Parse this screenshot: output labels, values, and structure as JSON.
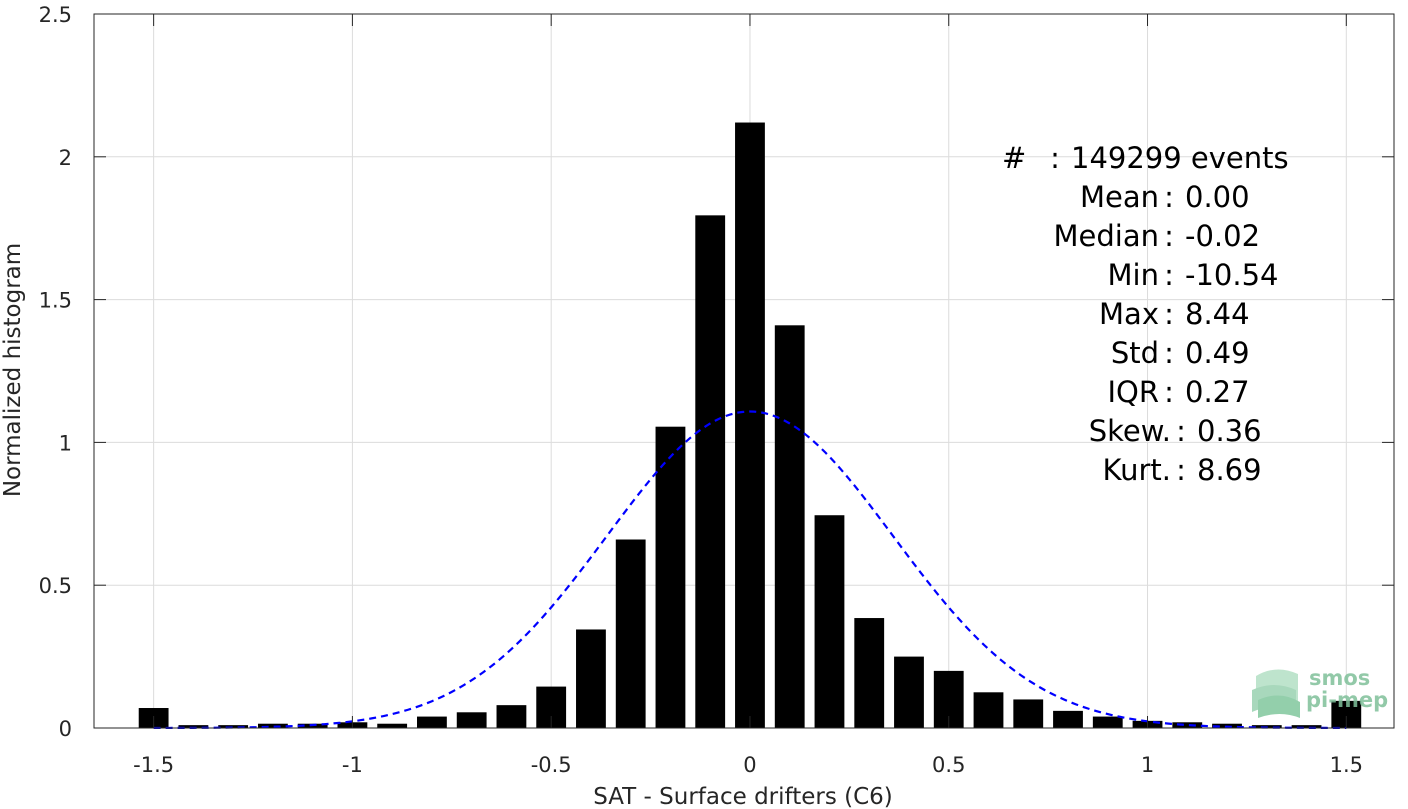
{
  "chart_data": {
    "type": "bar",
    "xlabel": "SAT - Surface drifters (C6)",
    "ylabel": "Normalized histogram",
    "xlim": [
      -1.65,
      1.62
    ],
    "ylim": [
      0,
      2.5
    ],
    "xticks": [
      -1.5,
      -1,
      -0.5,
      0,
      0.5,
      1,
      1.5
    ],
    "xtick_labels": [
      "-1.5",
      "-1",
      "-0.5",
      "0",
      "0.5",
      "1",
      "1.5"
    ],
    "yticks": [
      0,
      0.5,
      1,
      1.5,
      2,
      2.5
    ],
    "ytick_labels": [
      "0",
      "0.5",
      "1",
      "1.5",
      "2",
      "2.5"
    ],
    "grid": true,
    "bar_color": "#000000",
    "bar_width": 0.075,
    "x": [
      -1.5,
      -1.4,
      -1.3,
      -1.2,
      -1.1,
      -1.0,
      -0.9,
      -0.8,
      -0.7,
      -0.6,
      -0.5,
      -0.4,
      -0.3,
      -0.2,
      -0.1,
      0.0,
      0.1,
      0.2,
      0.3,
      0.4,
      0.5,
      0.6,
      0.7,
      0.8,
      0.9,
      1.0,
      1.1,
      1.2,
      1.3,
      1.4,
      1.5
    ],
    "values": [
      0.07,
      0.01,
      0.01,
      0.015,
      0.015,
      0.02,
      0.015,
      0.04,
      0.055,
      0.08,
      0.145,
      0.345,
      0.66,
      1.055,
      1.795,
      2.12,
      1.41,
      0.745,
      0.385,
      0.25,
      0.2,
      0.125,
      0.1,
      0.06,
      0.04,
      0.025,
      0.02,
      0.015,
      0.01,
      0.01,
      0.095
    ],
    "fit_curve": {
      "type": "normal",
      "mean": 0.0,
      "std": 0.36,
      "color": "#0000ff",
      "style": "dashed"
    },
    "stats": [
      {
        "label": "#",
        "sep": ":",
        "value": "149299 events"
      },
      {
        "label": "Mean",
        "sep": ":",
        "value": "0.00"
      },
      {
        "label": "Median",
        "sep": ":",
        "value": "-0.02"
      },
      {
        "label": "Min",
        "sep": ":",
        "value": "-10.54"
      },
      {
        "label": "Max",
        "sep": ":",
        "value": "8.44"
      },
      {
        "label": "Std",
        "sep": ":",
        "value": "0.49"
      },
      {
        "label": "IQR",
        "sep": ":",
        "value": "0.27"
      },
      {
        "label": "Skew.",
        "sep": ":",
        "value": "0.36"
      },
      {
        "label": "Kurt.",
        "sep": ":",
        "value": "8.69"
      }
    ]
  },
  "logo": {
    "line1": "smos",
    "line2": "pi-mep",
    "icon": "wave-stack-icon",
    "color": "#7fc09a"
  }
}
